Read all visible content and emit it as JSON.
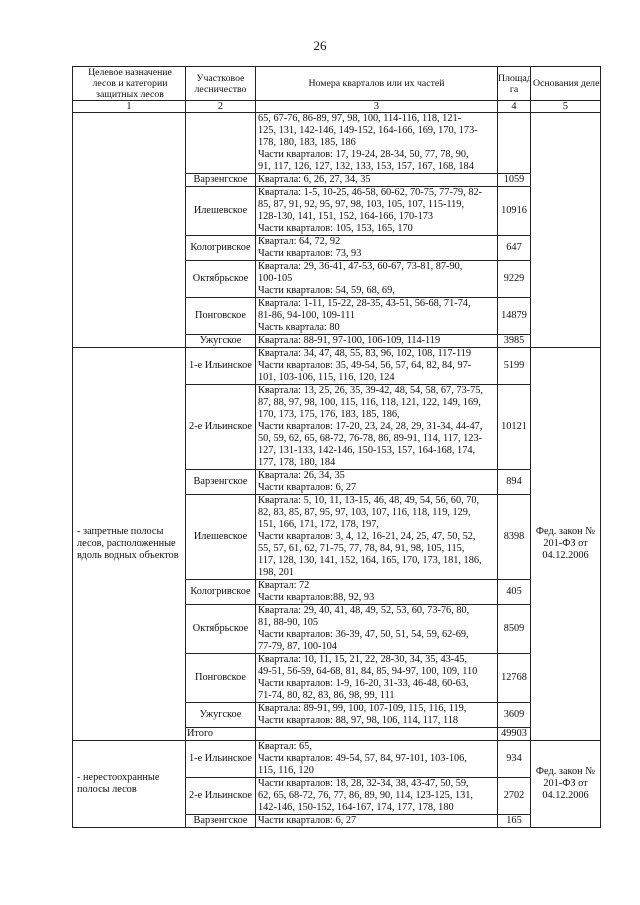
{
  "page_number": "26",
  "headers": [
    "Целевое назначение лесов и категории защитных лесов",
    "Участковое лесничество",
    "Номера кварталов или их частей",
    "Площадь, га",
    "Основания деления лесов по целевому назначению"
  ],
  "column_numbers": [
    "1",
    "2",
    "3",
    "4",
    "5"
  ],
  "groups": [
    {
      "category": "",
      "basis": "",
      "rows": [
        {
          "forestry": "",
          "quarters": "65, 67-76, 86-89, 97, 98, 100, 114-116, 118, 121-\n125, 131, 142-146, 149-152, 164-166, 169, 170, 173-\n178, 180, 183, 185, 186\nЧасти кварталов: 17, 19-24, 28-34, 50, 77, 78, 90,\n91, 117, 126, 127, 132, 133, 153, 157, 167, 168, 184",
          "area": ""
        },
        {
          "forestry": "Варзенгское",
          "quarters": "Квартала: 6, 26, 27, 34, 35",
          "area": "1059"
        },
        {
          "forestry": "Илешевское",
          "quarters": "Квартала: 1-5, 10-25, 46-58, 60-62, 70-75, 77-79, 82-\n85, 87, 91, 92, 95, 97, 98, 103, 105, 107, 115-119,\n128-130, 141, 151, 152, 164-166, 170-173\nЧасти кварталов: 105, 153, 165, 170",
          "area": "10916"
        },
        {
          "forestry": "Кологривское",
          "quarters": "Квартал: 64, 72, 92\nЧасти кварталов: 73, 93",
          "area": "647"
        },
        {
          "forestry": "Октябрьское",
          "quarters": "Квартала: 29, 36-41, 47-53, 60-67, 73-81, 87-90,\n100-105\nЧасти кварталов: 54, 59, 68, 69,",
          "area": "9229"
        },
        {
          "forestry": "Понговское",
          "quarters": "Квартала: 1-11, 15-22, 28-35, 43-51, 56-68, 71-74,\n81-86, 94-100, 109-111\nЧасть квартала: 80",
          "area": "14879"
        },
        {
          "forestry": "Ужугское",
          "quarters": "Квартала: 88-91, 97-100, 106-109, 114-119",
          "area": "3985"
        }
      ]
    },
    {
      "category": "- запретные полосы лесов, расположенные вдоль водных объектов",
      "basis": "Фед. закон № 201-ФЗ от 04.12.2006",
      "rows": [
        {
          "forestry": "1-е Ильинское",
          "quarters": "Квартала: 34, 47, 48, 55, 83, 96, 102, 108, 117-119\nЧасти кварталов: 35, 49-54, 56, 57, 64, 82, 84, 97-\n101, 103-106, 115, 116, 120, 124",
          "area": "5199"
        },
        {
          "forestry": "2-е Ильинское",
          "quarters": "Квартала: 13, 25, 26, 35, 39-42, 48, 54, 58, 67, 73-75,\n87, 88, 97, 98, 100, 115, 116, 118, 121, 122, 149, 169,\n170, 173, 175, 176, 183, 185, 186,\nЧасти кварталов: 17-20, 23, 24, 28, 29, 31-34, 44-47,\n50, 59, 62, 65, 68-72, 76-78, 86, 89-91, 114, 117, 123-\n127, 131-133, 142-146, 150-153, 157, 164-168, 174,\n177, 178, 180, 184",
          "area": "10121"
        },
        {
          "forestry": "Варзенгское",
          "quarters": "Квартала: 26, 34, 35\nЧасти кварталов: 6, 27",
          "area": "894"
        },
        {
          "forestry": "Илешевское",
          "quarters": "Квартала: 5, 10, 11, 13-15, 46, 48, 49, 54, 56, 60, 70,\n82, 83, 85, 87, 95, 97, 103, 107, 116, 118, 119, 129,\n151, 166, 171, 172, 178, 197,\nЧасти кварталов: 3, 4, 12, 16-21, 24, 25, 47, 50, 52,\n55, 57, 61, 62, 71-75, 77, 78, 84, 91, 98, 105, 115,\n117, 128, 130, 141, 152, 164, 165, 170, 173, 181, 186,\n198, 201",
          "area": "8398"
        },
        {
          "forestry": "Кологривское",
          "quarters": "Квартал: 72\nЧасти кварталов:88,  92, 93",
          "area": "405"
        },
        {
          "forestry": "Октябрьское",
          "quarters": "Квартала: 29, 40, 41, 48, 49, 52, 53, 60, 73-76, 80,\n81, 88-90, 105\nЧасти кварталов: 36-39, 47, 50, 51, 54, 59, 62-69,\n77-79, 87, 100-104",
          "area": "8509"
        },
        {
          "forestry": "Понговское",
          "quarters": "Квартала: 10, 11, 15, 21, 22, 28-30, 34, 35, 43-45,\n49-51, 56-59, 64-68, 81, 84, 85, 94-97, 100, 109, 110\nЧасти кварталов: 1-9, 16-20,  31-33, 46-48, 60-63,\n71-74, 80, 82, 83, 86, 98, 99, 111",
          "area": "12768"
        },
        {
          "forestry": "Ужугское",
          "quarters": "Квартала: 89-91, 99, 100, 107-109, 115, 116, 119,\nЧасти кварталов: 88, 97, 98, 106, 114, 117, 118",
          "area": "3609"
        },
        {
          "forestry": "Итого",
          "quarters": "",
          "area": "49903",
          "total": true
        }
      ]
    },
    {
      "category": "- нерестоохранные полосы лесов",
      "basis": "Фед. закон № 201-ФЗ от 04.12.2006",
      "rows": [
        {
          "forestry": "1-е Ильинское",
          "quarters": "Квартал: 65,\nЧасти кварталов: 49-54, 57, 84, 97-101, 103-106,\n115, 116, 120",
          "area": "934"
        },
        {
          "forestry": "2-е Ильинское",
          "quarters": "Части кварталов: 18, 28, 32-34, 38, 43-47, 50, 59,\n62, 65, 68-72, 76, 77, 86, 89, 90, 114, 123-125, 131,\n142-146, 150-152, 164-167, 174, 177, 178, 180",
          "area": "2702"
        },
        {
          "forestry": "Варзенгское",
          "quarters": "Части кварталов: 6, 27",
          "area": "165"
        }
      ]
    }
  ]
}
